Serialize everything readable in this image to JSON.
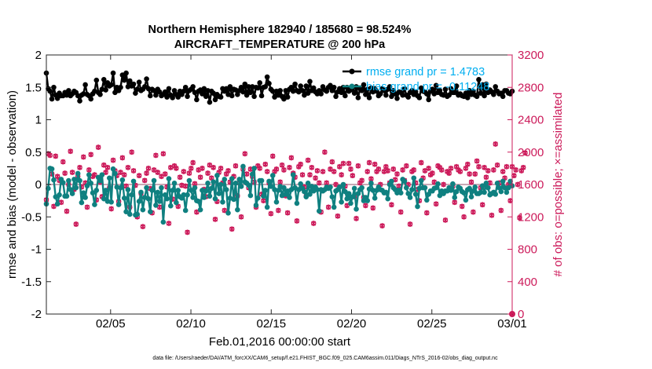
{
  "chart_data": {
    "type": "line",
    "title_line1": "Northern Hemisphere 182940 / 185680 = 98.524%",
    "title_line2": "AIRCRAFT_TEMPERATURE @ 200 hPa",
    "xlabel": "Feb.01,2016 00:00:00 start",
    "ylabel_left": "rmse and bias (model - observation)",
    "ylabel_right": "# of obs: o=possible; ×=assimilated",
    "footnote": "data file: /Users/raeder/DAI/ATM_forcXX/CAM6_setup/f.e21.FHIST_BGC.f09_025.CAM6assim.011/Diags_NTrS_2016-02/obs_diag_output.nc",
    "xlim": [
      1,
      30
    ],
    "ylim_left": [
      -2,
      2
    ],
    "ylim_right": [
      0,
      3200
    ],
    "x_ticks": [
      5,
      10,
      15,
      20,
      25,
      30
    ],
    "x_tick_labels": [
      "02/05",
      "02/10",
      "02/15",
      "02/20",
      "02/25",
      "03/01"
    ],
    "y_left_ticks": [
      -2,
      -1.5,
      -1,
      -0.5,
      0,
      0.5,
      1,
      1.5,
      2
    ],
    "y_left_tick_labels": [
      "-2",
      "-1.5",
      "-1",
      "-0.5",
      "0",
      "0.5",
      "1",
      "1.5",
      "2"
    ],
    "y_right_ticks": [
      0,
      400,
      800,
      1200,
      1600,
      2000,
      2400,
      2800,
      3200
    ],
    "y_right_tick_labels": [
      "0",
      "400",
      "800",
      "1200",
      "1600",
      "2000",
      "2400",
      "2800",
      "3200"
    ],
    "legend": [
      "rmse grand pr = 1.4783",
      "bias grand pr = -0.11248"
    ],
    "colors": {
      "rmse": "#000000",
      "bias": "#0f8080",
      "obs": "#cc1a5a",
      "zero_line": "#c9a9b6",
      "legend_text": "#00aef0"
    },
    "series": [
      {
        "name": "rmse",
        "values": [
          1.72,
          1.48,
          1.44,
          1.32,
          1.5,
          1.38,
          1.33,
          1.41,
          1.37,
          1.37,
          1.42,
          1.38,
          1.45,
          1.37,
          1.4,
          1.44,
          1.42,
          1.37,
          1.29,
          1.38,
          1.4,
          1.54,
          1.39,
          1.37,
          1.32,
          1.4,
          1.44,
          1.61,
          1.42,
          1.39,
          1.47,
          1.62,
          1.46,
          1.57,
          1.52,
          1.54,
          1.72,
          1.42,
          1.5,
          1.45,
          1.5,
          1.69,
          1.61,
          1.72,
          1.51,
          1.6,
          1.52,
          1.55,
          1.41,
          1.47,
          1.58,
          1.45,
          1.47,
          1.51,
          1.63,
          1.48,
          1.37,
          1.47,
          1.45,
          1.38,
          1.47,
          1.43,
          1.37,
          1.39,
          1.43,
          1.35,
          1.48,
          1.38,
          1.34,
          1.45,
          1.39,
          1.35,
          1.44,
          1.39,
          1.44,
          1.5,
          1.36,
          1.45,
          1.47,
          1.51,
          1.42,
          1.31,
          1.44,
          1.46,
          1.4,
          1.48,
          1.36,
          1.45,
          1.27,
          1.44,
          1.41,
          1.31,
          1.39,
          1.36,
          1.35,
          1.48,
          1.44,
          1.48,
          1.39,
          1.51,
          1.37,
          1.47,
          1.46,
          1.39,
          1.45,
          1.5,
          1.43,
          1.55,
          1.38,
          1.51,
          1.42,
          1.51,
          1.36,
          1.5,
          1.49,
          1.57,
          1.37,
          1.5,
          1.51,
          1.66,
          1.56,
          1.47,
          1.44,
          1.35,
          1.44,
          1.38,
          1.45,
          1.36,
          1.32,
          1.45,
          1.35,
          1.47,
          1.5,
          1.44,
          1.55,
          1.45,
          1.43,
          1.52,
          1.45,
          1.38,
          1.52,
          1.41,
          1.59,
          1.45,
          1.49,
          1.43,
          1.4,
          1.45,
          1.4,
          1.51,
          1.46,
          1.44,
          1.5,
          1.53,
          1.45,
          1.5,
          1.36,
          1.43,
          1.48,
          1.42,
          1.5,
          1.37,
          1.5,
          1.44,
          1.46,
          1.5,
          1.41,
          1.51,
          1.34,
          1.48,
          1.45,
          1.54,
          1.39,
          1.47,
          1.34,
          1.49,
          1.43,
          1.48,
          1.44,
          1.37,
          1.4,
          1.48,
          1.45,
          1.38,
          1.47,
          1.51,
          1.36,
          1.45,
          1.4,
          1.33,
          1.43,
          1.42,
          1.38,
          1.48,
          1.38,
          1.35,
          1.42,
          1.45,
          1.39,
          1.43,
          1.37,
          1.34,
          1.49,
          1.44,
          1.43,
          1.4,
          1.31,
          1.44,
          1.47,
          1.4,
          1.53,
          1.42,
          1.45,
          1.39,
          1.38,
          1.47,
          1.36,
          1.38,
          1.48,
          1.42,
          1.42,
          1.52,
          1.38,
          1.4,
          1.37,
          1.36,
          1.41,
          1.34,
          1.45,
          1.39,
          1.44,
          1.38,
          1.36,
          1.62,
          1.41,
          1.54,
          1.37,
          1.55,
          1.42,
          1.46,
          1.43,
          1.39,
          1.51,
          1.44,
          1.4,
          1.41,
          1.36,
          1.45,
          1.45,
          1.41,
          1.4,
          1.44
        ]
      },
      {
        "name": "bias",
        "values": [
          -0.3,
          -0.06,
          0.25,
          0.24,
          0.07,
          -0.19,
          -0.3,
          -0.16,
          0.08,
          0.03,
          -0.18,
          -0.18,
          0.06,
          -0.08,
          -0.14,
          0.08,
          -0.05,
          0.17,
          0.06,
          -0.28,
          -0.13,
          -0.2,
          -0.02,
          0.15,
          0.02,
          -0.13,
          -0.31,
          -0.09,
          0.11,
          0.06,
          0.15,
          -0.22,
          -0.09,
          -0.26,
          0.1,
          -0.27,
          0.24,
          0.17,
          -0.04,
          -0.31,
          -0.05,
          0.07,
          -0.21,
          -0.42,
          -0.08,
          -0.46,
          -0.16,
          0.05,
          -0.47,
          -0.46,
          -0.26,
          -0.12,
          -0.39,
          -0.2,
          -0.05,
          -0.22,
          -0.42,
          -0.09,
          0.06,
          -0.32,
          -0.12,
          -0.26,
          -0.05,
          -0.58,
          -0.16,
          -0.22,
          0.09,
          -0.33,
          -0.09,
          0.02,
          -0.28,
          -0.09,
          -0.19,
          -0.21,
          -0.16,
          -0.4,
          -0.16,
          0.06,
          -0.09,
          -0.2,
          -0.05,
          -0.25,
          -0.26,
          -0.39,
          -0.09,
          -0.2,
          -0.1,
          0.02,
          -0.18,
          -0.06,
          0.04,
          -0.22,
          0.14,
          -0.14,
          0.0,
          -0.27,
          0.08,
          -0.08,
          -0.44,
          -0.21,
          0.09,
          -0.23,
          0.02,
          -0.39,
          0.08,
          -0.03,
          0.28,
          0.04,
          0.02,
          -0.01,
          -0.17,
          0.16,
          0.25,
          -0.32,
          -0.21,
          0.06,
          0.06,
          -0.18,
          -0.09,
          -0.35,
          0.05,
          -0.03,
          0.14,
          -0.08,
          -0.27,
          -0.09,
          -0.03,
          -0.17,
          -0.05,
          -0.15,
          -0.1,
          -0.2,
          -0.08,
          0.15,
          -0.05,
          -0.29,
          -0.08,
          0.01,
          -0.06,
          -0.11,
          -0.19,
          0.02,
          -0.15,
          -0.03,
          -0.1,
          -0.04,
          -0.08,
          -0.41,
          -0.08,
          -0.1,
          -0.08,
          -0.04,
          -0.06,
          -0.04,
          -0.19,
          -0.35,
          -0.1,
          -0.08,
          -0.04,
          -0.27,
          0.0,
          -0.11,
          -0.22,
          -0.14,
          -0.29,
          -0.19,
          -0.06,
          -0.38,
          -0.14,
          -0.08,
          -0.05,
          -0.25,
          -0.2,
          -0.25,
          -0.07,
          0.02,
          -0.09,
          -0.21,
          -0.09,
          -0.04,
          -0.08,
          -0.09,
          -0.13,
          -0.12,
          -0.22,
          0.0,
          0.05,
          -0.05,
          -0.08,
          -0.13,
          -0.09,
          -0.13,
          0.08,
          0.05,
          -0.05,
          -0.14,
          -0.2,
          -0.08,
          0.1,
          -0.15,
          -0.34,
          -0.06,
          0.06,
          -0.05,
          -0.05,
          -0.24,
          -0.15,
          -0.1,
          -0.1,
          -0.06,
          -0.05,
          0.01,
          -0.17,
          -0.1,
          -0.14,
          -0.1,
          -0.1,
          -0.05,
          -0.09,
          0.01,
          -0.2,
          -0.11,
          -0.04,
          -0.06,
          -0.11,
          -0.13,
          -0.24,
          -0.08,
          -0.06,
          -0.19,
          -0.1,
          -0.04,
          -0.14,
          -0.14,
          -0.12,
          -0.02,
          -0.12,
          0.02,
          -0.05,
          -0.16,
          -0.14,
          -0.12,
          -0.15,
          0.02,
          -0.05,
          -0.11,
          0.05,
          -0.05,
          -0.12,
          -0.05,
          0.05,
          -0.02
        ]
      },
      {
        "name": "obs_possible",
        "values": [
          1410,
          1980,
          1960,
          1730,
          1330,
          1950,
          1700,
          1650,
          1380,
          1880,
          1740,
          1270,
          1600,
          2010,
          1750,
          1540,
          1110,
          1700,
          1810,
          1570,
          1940,
          1620,
          1320,
          1780,
          1970,
          1700,
          1720,
          1410,
          2060,
          1630,
          1450,
          1840,
          1750,
          1810,
          1560,
          1300,
          1900,
          1770,
          1710,
          1390,
          1750,
          1930,
          1720,
          1580,
          1810,
          1320,
          2000,
          1770,
          1590,
          1200,
          1710,
          1490,
          1080,
          1650,
          1740,
          1800,
          1550,
          1250,
          1780,
          1960,
          1750,
          1320,
          1700,
          1980,
          1730,
          1570,
          1120,
          1810,
          1420,
          1830,
          1800,
          1330,
          1690,
          1590,
          1760,
          1580,
          1010,
          1740,
          1800,
          1870,
          1610,
          1260,
          1780,
          1690,
          1800,
          1540,
          1450,
          1740,
          1840,
          1680,
          1810,
          1170,
          1390,
          1750,
          1800,
          1620,
          1280,
          1730,
          1770,
          1630,
          1050,
          1700,
          1830,
          1460,
          1620,
          1200,
          1790,
          1980,
          1730,
          1560,
          1790,
          1700,
          1630,
          1320,
          1830,
          1800,
          1480,
          1400,
          1850,
          1760,
          1620,
          1240,
          1950,
          1760,
          1790,
          1280,
          1630,
          1840,
          1780,
          1460,
          1250,
          1810,
          1930,
          1740,
          1690,
          1150,
          1820,
          1850,
          1720,
          1570,
          1460,
          1900,
          1720,
          1810,
          1120,
          1680,
          1770,
          1620,
          1260,
          1760,
          2000,
          1620,
          1320,
          1790,
          1880,
          1760,
          1600,
          1210,
          1820,
          1720,
          1860,
          1580,
          1340,
          1860,
          1790,
          1710,
          1450,
          1180,
          1830,
          1620,
          1650,
          1440,
          1340,
          1760,
          1870,
          1670,
          1310,
          1850,
          1760,
          1790,
          1600,
          1090,
          1760,
          1820,
          1770,
          1620,
          1350,
          1790,
          1660,
          1730,
          1580,
          1260,
          1780,
          1650,
          1830,
          1600,
          1110,
          1760,
          1780,
          1620,
          1540,
          1400,
          1870,
          1680,
          1770,
          1250,
          1800,
          1720,
          1740,
          1630,
          1360,
          1830,
          1810,
          1780,
          1600,
          1160,
          1760,
          1740,
          1800,
          1580,
          1380,
          1820,
          1780,
          1760,
          1330,
          1200,
          1800,
          1850,
          1730,
          1630,
          1260,
          1730,
          1890,
          1820,
          1560,
          1350,
          1810,
          1690,
          1770,
          1620,
          1220,
          1780,
          2100,
          1840,
          1620,
          1280,
          1760,
          1680,
          1820,
          1600,
          1400,
          1820,
          1710,
          1780,
          1600,
          1190,
          1770,
          1810,
          1990
        ]
      }
    ]
  }
}
